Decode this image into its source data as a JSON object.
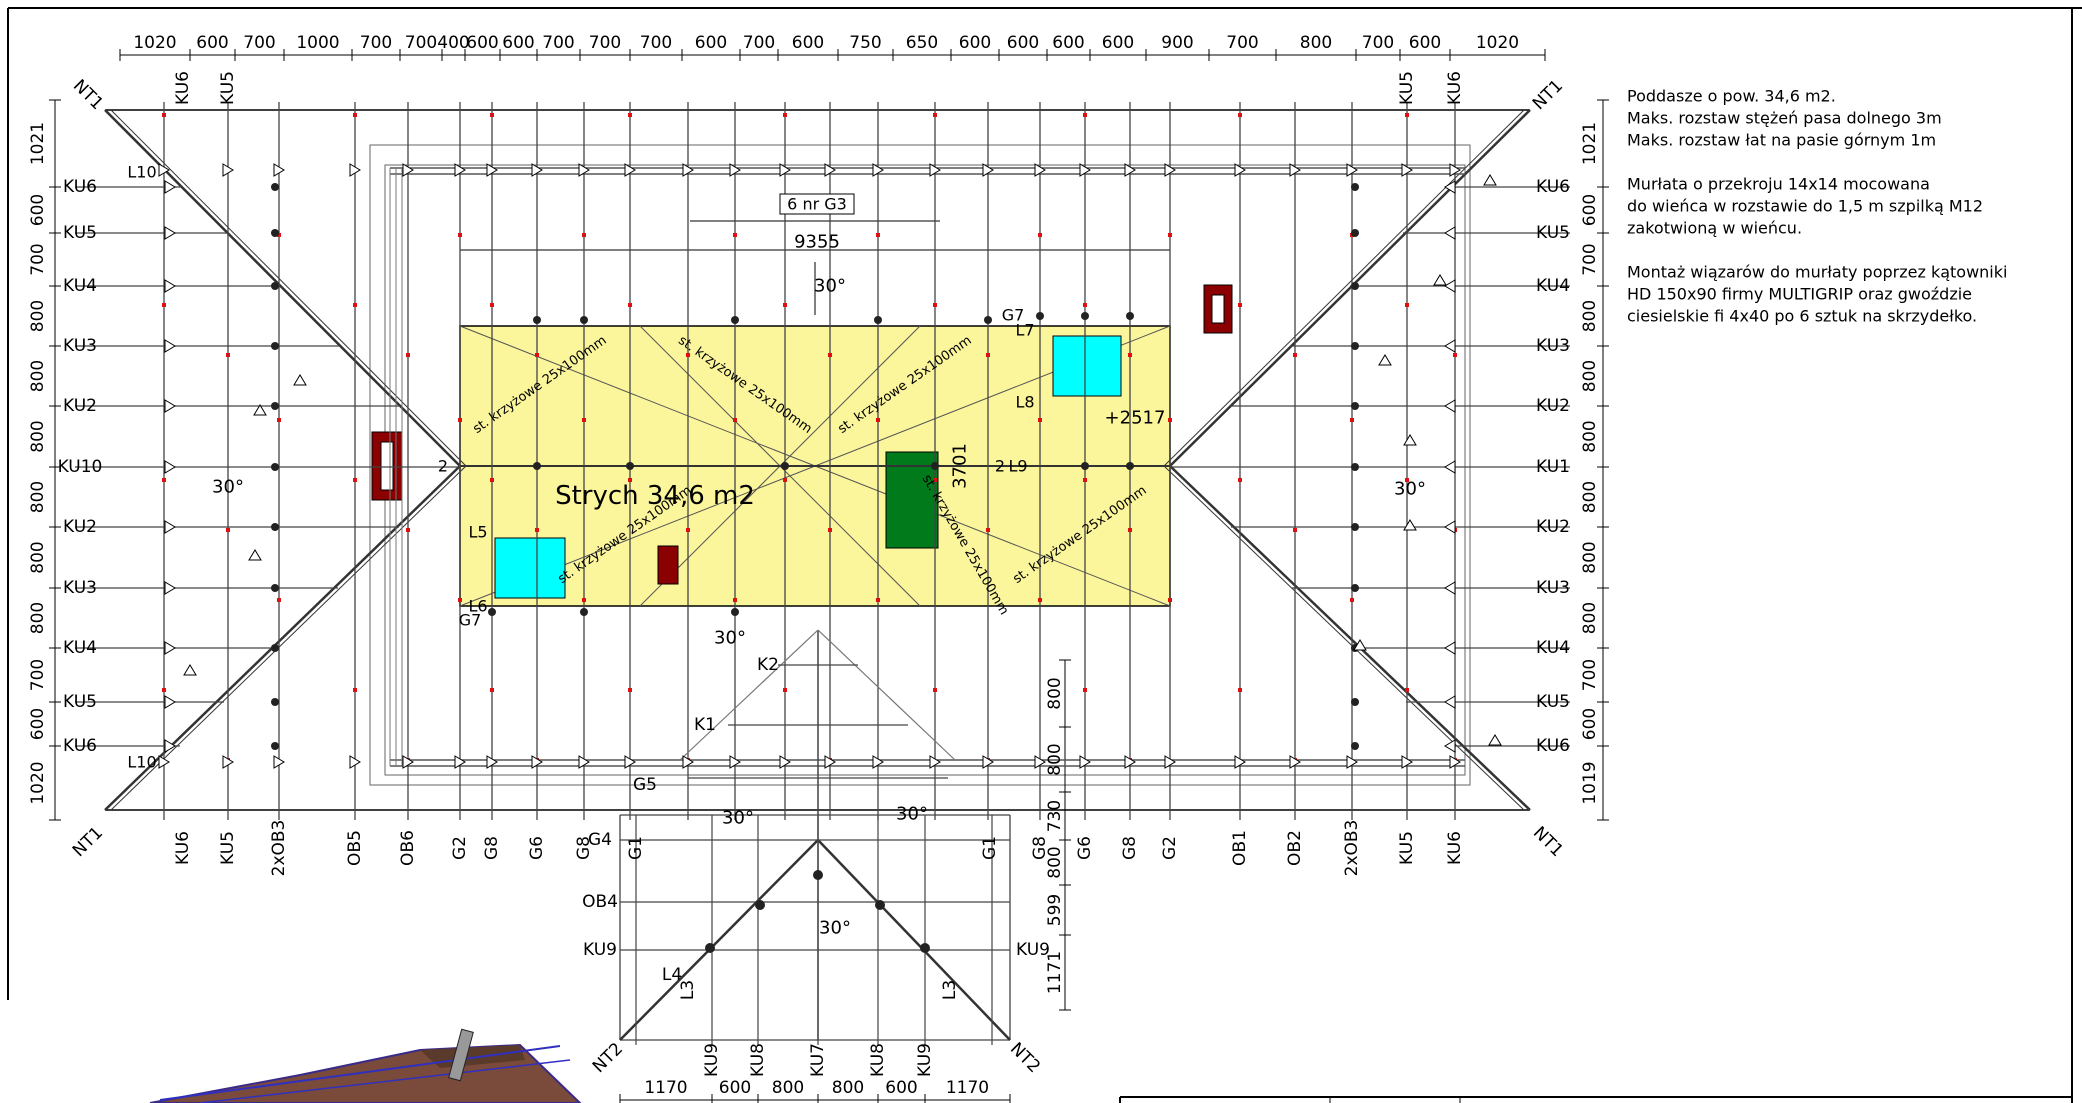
{
  "dimensions": {
    "top": [
      "1020",
      "600",
      "700",
      "1000",
      "700",
      "700",
      "400",
      "600",
      "600",
      "700",
      "700",
      "700",
      "600",
      "700",
      "600",
      "750",
      "650",
      "600",
      "600",
      "600",
      "600",
      "900",
      "700",
      "800",
      "700",
      "600",
      "1020"
    ],
    "bottom": [
      "1170",
      "600",
      "800",
      "800",
      "600",
      "1170"
    ],
    "left": [
      "1021",
      "600",
      "700",
      "800",
      "800",
      "800",
      "800",
      "800",
      "800",
      "700",
      "600",
      "1020"
    ],
    "right": [
      "1021",
      "600",
      "700",
      "800",
      "800",
      "800",
      "800",
      "800",
      "800",
      "700",
      "600",
      "1019"
    ],
    "wing_right": [
      "800",
      "800",
      "730",
      "800",
      "599",
      "1171"
    ]
  },
  "labels": {
    "corners": {
      "tl": "NT1",
      "tr": "NT1",
      "bl": "NT1",
      "br": "NT1",
      "wl": "NT2",
      "wr": "NT2"
    },
    "left_rows": [
      "KU6",
      "KU5",
      "KU4",
      "KU3",
      "KU2",
      "KU10",
      "KU2",
      "KU3",
      "KU4",
      "KU5",
      "KU6"
    ],
    "right_rows": [
      "KU6",
      "KU5",
      "KU4",
      "KU3",
      "KU2",
      "KU1",
      "KU2",
      "KU3",
      "KU4",
      "KU5",
      "KU6"
    ],
    "top_cols": [
      "KU6",
      "KU5",
      "KU5",
      "KU6"
    ],
    "bottom_cols": [
      "KU6",
      "KU5",
      "2xOB3",
      "OB5",
      "OB6",
      "G2",
      "G8",
      "G6",
      "G8",
      "G1",
      "G1",
      "G8",
      "G6",
      "G8",
      "G2",
      "OB1",
      "OB2",
      "2xOB3",
      "KU5",
      "KU6"
    ],
    "wing_left": [
      "G4",
      "OB4",
      "KU9"
    ],
    "wing_right_row": "KU9",
    "wing_bottom": [
      "KU9",
      "KU8",
      "KU7",
      "KU8",
      "KU9"
    ],
    "wing_misc": [
      "K2",
      "K1",
      "G5",
      "L4",
      "L3",
      "L3"
    ]
  },
  "plan": {
    "room_label": "Strych  34,6  m2",
    "girder_tag": "6 nr  G3",
    "girder_dim": "9355",
    "room_width": "3701",
    "level": "+2517",
    "angle": "30°",
    "brace": "st. krzyżowe 25x100mm",
    "misc_labels": [
      "L10",
      "L10",
      "L5",
      "L6",
      "G7",
      "G7",
      "L7",
      "L8",
      "L9",
      "2",
      "2"
    ]
  },
  "notes": [
    "Poddasze o pow. 34,6 m2.",
    "Maks. rozstaw stężeń pasa dolnego 3m",
    "Maks. rozstaw łat na pasie górnym 1m",
    "",
    "Murłata o przekroju 14x14 mocowana",
    "do wieńca w rozstawie do 1,5 m szpilką M12",
    "zakotwioną w wieńcu.",
    "",
    "Montaż wiązarów do murłaty poprzez kątowniki",
    "HD 150x90 firmy MULTIGRIP oraz gwoździe",
    "ciesielskie fi 4x40 po 6 sztuk na skrzydełko."
  ],
  "colors": {
    "room": "#fbf59c",
    "window": "#00ffff",
    "chimney": "#8b0000",
    "stair": "#007a1a",
    "truss": "#333333",
    "marker": "#e01010"
  }
}
